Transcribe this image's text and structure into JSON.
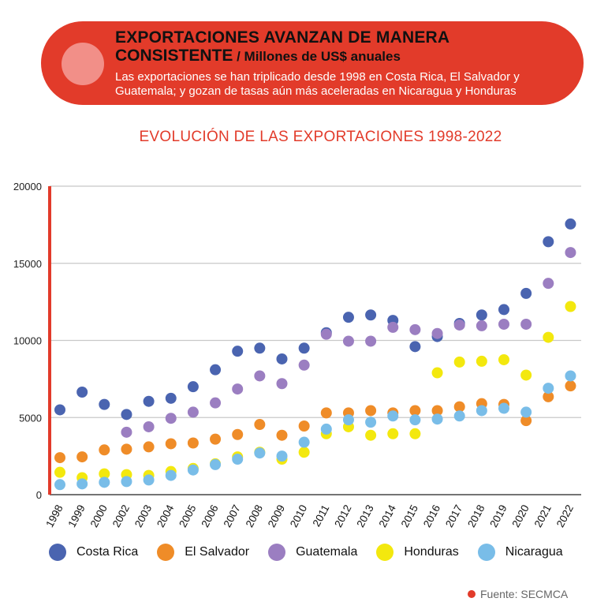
{
  "header": {
    "title_line1": "EXPORTACIONES AVANZAN DE MANERA",
    "title_line2": "CONSISTENTE",
    "subtitle": " / Millones de US$ anuales",
    "description": "Las exportaciones se han triplicado desde 1998 en Costa Rica, El Salvador y Guatemala; y gozan de tasas aún más aceleradas en Nicaragua y Honduras"
  },
  "colors": {
    "accent": "#e23b2a",
    "grid": "#c8c8c8"
  },
  "source": {
    "label": "Fuente: SECMCA"
  },
  "chart_data": {
    "type": "scatter",
    "title": "EVOLUCIÓN DE LAS EXPORTACIONES 1998-2022",
    "xlabel": "",
    "ylabel": "",
    "ylim": [
      0,
      20000
    ],
    "yticks": [
      0,
      5000,
      10000,
      15000,
      20000
    ],
    "grid": true,
    "legend_position": "bottom",
    "categories": [
      "1998",
      "1999",
      "2000",
      "2002",
      "2003",
      "2004",
      "2005",
      "2006",
      "2007",
      "2008",
      "2009",
      "2010",
      "2011",
      "2012",
      "2013",
      "2014",
      "2015",
      "2016",
      "2017",
      "2018",
      "2019",
      "2020",
      "2021",
      "2022"
    ],
    "series": [
      {
        "name": "Costa Rica",
        "color": "#4a64b0",
        "values": [
          5500,
          6650,
          5850,
          5200,
          6050,
          6250,
          7000,
          8100,
          9300,
          9500,
          8800,
          9500,
          10500,
          11500,
          11650,
          11300,
          9600,
          10250,
          11100,
          11650,
          12000,
          13050,
          16400,
          17550
        ]
      },
      {
        "name": "El Salvador",
        "color": "#ef8c28",
        "values": [
          2400,
          2450,
          2900,
          2950,
          3100,
          3300,
          3350,
          3600,
          3900,
          4550,
          3850,
          4450,
          5300,
          5300,
          5450,
          5300,
          5450,
          5450,
          5700,
          5900,
          5850,
          4800,
          6350,
          7050
        ]
      },
      {
        "name": "Guatemala",
        "color": "#9b7ec1",
        "values": [
          null,
          null,
          null,
          4050,
          4400,
          4950,
          5350,
          5950,
          6850,
          7700,
          7200,
          8400,
          10400,
          9950,
          9950,
          10850,
          10700,
          10450,
          11000,
          10950,
          11050,
          11050,
          13700,
          15700
        ]
      },
      {
        "name": "Honduras",
        "color": "#f3e80e",
        "values": [
          1450,
          1100,
          1350,
          1300,
          1250,
          1500,
          1700,
          2000,
          2450,
          2750,
          2300,
          2750,
          3950,
          4400,
          3850,
          3950,
          3950,
          7900,
          8600,
          8650,
          8750,
          7750,
          10200,
          12200
        ]
      },
      {
        "name": "Nicaragua",
        "color": "#79bde8",
        "values": [
          650,
          700,
          800,
          850,
          950,
          1250,
          1600,
          1950,
          2300,
          2700,
          2500,
          3400,
          4250,
          4850,
          4700,
          5100,
          4850,
          4900,
          5100,
          5450,
          5600,
          5350,
          6900,
          7700
        ]
      }
    ]
  }
}
